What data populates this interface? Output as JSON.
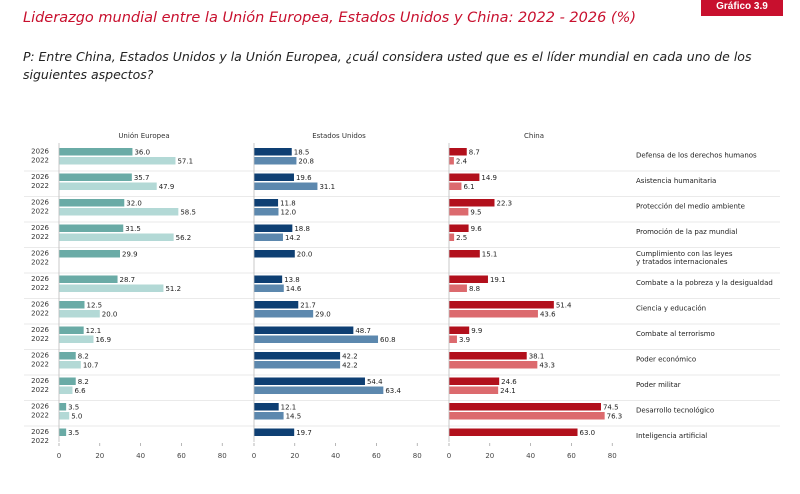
{
  "badge": "Gráfico 3.9",
  "title": "Liderazgo mundial entre la Unión Europea, Estados Unidos y China: 2022 - 2026 (%)",
  "question": "P: Entre China, Estados Unidos y la Unión Europea, ¿cuál considera usted que es el líder mundial en cada uno de los siguientes aspectos?",
  "colors": {
    "ue_2026": "#6aaba6",
    "ue_2022": "#b3d9d6",
    "us_2026": "#0e3f73",
    "us_2022": "#5c88ae",
    "cn_2026": "#b2101c",
    "cn_2022": "#dc6a6e"
  },
  "chart_data": {
    "type": "bar",
    "orientation": "horizontal",
    "panels": [
      "Unión Europea",
      "Estados Unidos",
      "China"
    ],
    "years": [
      "2026",
      "2022"
    ],
    "xlim": [
      0,
      80
    ],
    "xticks": [
      "0",
      "20",
      "40",
      "60",
      "80"
    ],
    "categories": [
      "Defensa de los derechos humanos",
      "Asistencia humanitaria",
      "Protección del medio ambiente",
      "Promoción de la paz mundial",
      "Cumplimiento con las leyes y tratados internacionales",
      "Combate a la pobreza y la desigualdad",
      "Ciencia y educación",
      "Combate al terrorismo",
      "Poder económico",
      "Poder militar",
      "Desarrollo tecnológico",
      "Inteligencia artificial"
    ],
    "category_lines": [
      [
        "Defensa de los derechos humanos"
      ],
      [
        "Asistencia humanitaria"
      ],
      [
        "Protección del medio ambiente"
      ],
      [
        "Promoción de la paz mundial"
      ],
      [
        "Cumplimiento con las leyes",
        "y tratados internacionales"
      ],
      [
        "Combate a la pobreza y la desigualdad"
      ],
      [
        "Ciencia y educación"
      ],
      [
        "Combate al terrorismo"
      ],
      [
        "Poder económico"
      ],
      [
        "Poder militar"
      ],
      [
        "Desarrollo tecnológico"
      ],
      [
        "Inteligencia artificial"
      ]
    ],
    "series": [
      {
        "panel": "Unión Europea",
        "year": "2026",
        "values": [
          36.0,
          35.7,
          32.0,
          31.5,
          29.9,
          28.7,
          12.5,
          12.1,
          8.2,
          8.2,
          3.5,
          3.5
        ]
      },
      {
        "panel": "Unión Europea",
        "year": "2022",
        "values": [
          57.1,
          47.9,
          58.5,
          56.2,
          null,
          51.2,
          20.0,
          16.9,
          10.7,
          6.6,
          5.0,
          null
        ]
      },
      {
        "panel": "Estados Unidos",
        "year": "2026",
        "values": [
          18.5,
          19.6,
          11.8,
          18.8,
          20.0,
          13.8,
          21.7,
          48.7,
          42.2,
          54.4,
          12.1,
          19.7
        ]
      },
      {
        "panel": "Estados Unidos",
        "year": "2022",
        "values": [
          20.8,
          31.1,
          12.0,
          14.2,
          null,
          14.6,
          29.0,
          60.8,
          42.2,
          63.4,
          14.5,
          null
        ]
      },
      {
        "panel": "China",
        "year": "2026",
        "values": [
          8.7,
          14.9,
          22.3,
          9.6,
          15.1,
          19.1,
          51.4,
          9.9,
          38.1,
          24.6,
          74.5,
          63.0
        ]
      },
      {
        "panel": "China",
        "year": "2022",
        "values": [
          2.4,
          6.1,
          9.5,
          2.5,
          null,
          8.8,
          43.6,
          3.9,
          43.3,
          24.1,
          76.3,
          null
        ]
      }
    ]
  }
}
